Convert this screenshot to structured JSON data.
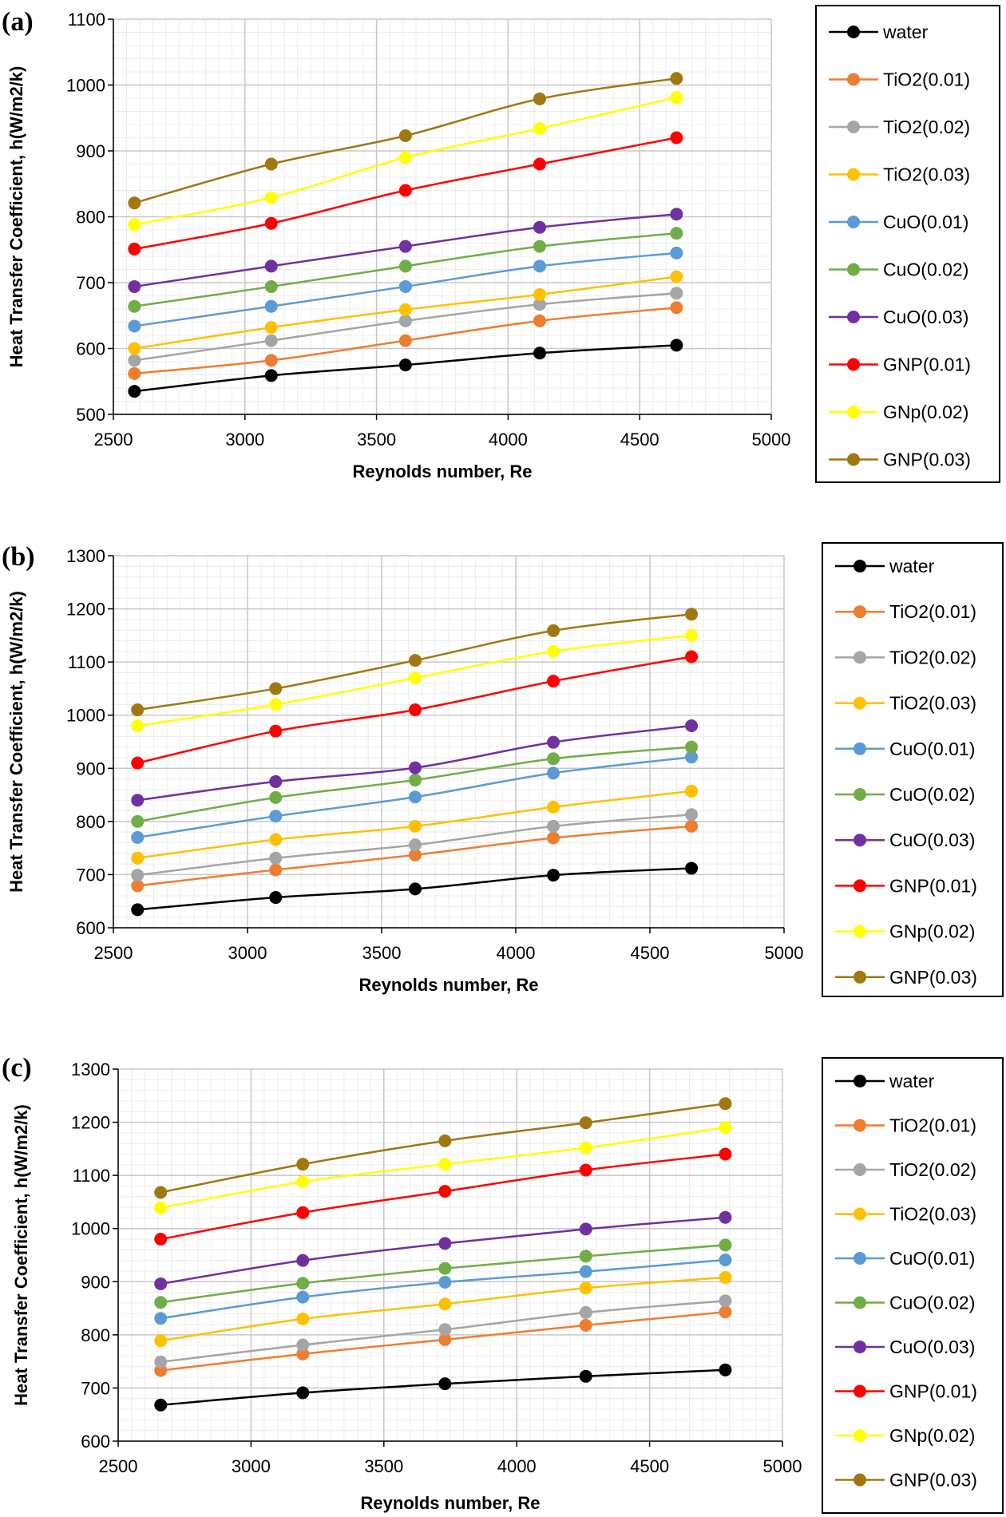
{
  "chart_data": [
    {
      "type": "line",
      "panel_label": "(a)",
      "xlabel": "Reynolds number, Re",
      "ylabel": "Heat Transfer Coefficient, h(W/m2/k)",
      "xlim": [
        2500,
        5000
      ],
      "ylim": [
        500,
        1100
      ],
      "xticks": [
        "2500",
        "3000",
        "3500",
        "4000",
        "4500",
        "5000"
      ],
      "yticks": [
        "500",
        "600",
        "700",
        "800",
        "900",
        "1000",
        "1100"
      ],
      "grid": true,
      "legend_position": "right",
      "x": [
        2580,
        3100,
        3610,
        4120,
        4640
      ],
      "series": [
        {
          "name": "water",
          "color": "#000000",
          "values": [
            535,
            559,
            575,
            593,
            605
          ]
        },
        {
          "name": "TiO2(0.01)",
          "color": "#ED7D31",
          "values": [
            562,
            582,
            612,
            642,
            662
          ]
        },
        {
          "name": "TiO2(0.02)",
          "color": "#A5A5A5",
          "values": [
            582,
            612,
            642,
            667,
            684
          ]
        },
        {
          "name": "TiO2(0.03)",
          "color": "#FFC000",
          "values": [
            600,
            632,
            659,
            682,
            709
          ]
        },
        {
          "name": "CuO(0.01)",
          "color": "#5B9BD5",
          "values": [
            634,
            664,
            694,
            725,
            745
          ]
        },
        {
          "name": "CuO(0.02)",
          "color": "#70AD47",
          "values": [
            664,
            694,
            725,
            755,
            775
          ]
        },
        {
          "name": "CuO(0.03)",
          "color": "#7030A0",
          "values": [
            694,
            725,
            755,
            784,
            804
          ]
        },
        {
          "name": "GNP(0.01)",
          "color": "#FF0000",
          "values": [
            751,
            790,
            840,
            880,
            920
          ]
        },
        {
          "name": "GNp(0.02)",
          "color": "#FFFF00",
          "values": [
            788,
            829,
            890,
            934,
            981
          ]
        },
        {
          "name": "GNP(0.03)",
          "color": "#A07810",
          "values": [
            821,
            880,
            923,
            979,
            1010
          ]
        }
      ]
    },
    {
      "type": "line",
      "panel_label": "(b)",
      "xlabel": "Reynolds number, Re",
      "ylabel": "Heat Transfer Coefficient, h(W/m2/k)",
      "xlim": [
        2500,
        5000
      ],
      "ylim": [
        600,
        1300
      ],
      "xticks": [
        "2500",
        "3000",
        "3500",
        "4000",
        "4500",
        "5000"
      ],
      "yticks": [
        "600",
        "700",
        "800",
        "900",
        "1000",
        "1100",
        "1200",
        "1300"
      ],
      "grid": true,
      "legend_position": "right",
      "x": [
        2590,
        3105,
        3625,
        4140,
        4655
      ],
      "series": [
        {
          "name": "water",
          "color": "#000000",
          "values": [
            634,
            657,
            673,
            699,
            712
          ]
        },
        {
          "name": "TiO2(0.01)",
          "color": "#ED7D31",
          "values": [
            679,
            709,
            737,
            769,
            791
          ]
        },
        {
          "name": "TiO2(0.02)",
          "color": "#A5A5A5",
          "values": [
            699,
            731,
            756,
            791,
            813
          ]
        },
        {
          "name": "TiO2(0.03)",
          "color": "#FFC000",
          "values": [
            731,
            766,
            791,
            827,
            857
          ]
        },
        {
          "name": "CuO(0.01)",
          "color": "#5B9BD5",
          "values": [
            770,
            810,
            846,
            891,
            921
          ]
        },
        {
          "name": "CuO(0.02)",
          "color": "#70AD47",
          "values": [
            800,
            845,
            878,
            918,
            940
          ]
        },
        {
          "name": "CuO(0.03)",
          "color": "#7030A0",
          "values": [
            840,
            875,
            901,
            949,
            980
          ]
        },
        {
          "name": "GNP(0.01)",
          "color": "#FF0000",
          "values": [
            910,
            970,
            1010,
            1064,
            1110
          ]
        },
        {
          "name": "GNp(0.02)",
          "color": "#FFFF00",
          "values": [
            980,
            1020,
            1070,
            1120,
            1150
          ]
        },
        {
          "name": "GNP(0.03)",
          "color": "#A07810",
          "values": [
            1010,
            1050,
            1103,
            1159,
            1190
          ]
        }
      ]
    },
    {
      "type": "line",
      "panel_label": "(c)",
      "xlabel": "Reynolds number, Re",
      "ylabel": "Heat Transfer Coefficient, h(W/m2/k)",
      "xlim": [
        2500,
        5000
      ],
      "ylim": [
        600,
        1300
      ],
      "xticks": [
        "2500",
        "3000",
        "3500",
        "4000",
        "4500",
        "5000"
      ],
      "yticks": [
        "600",
        "700",
        "800",
        "900",
        "1000",
        "1100",
        "1200",
        "1300"
      ],
      "grid": true,
      "legend_position": "right",
      "x": [
        2660,
        3195,
        3730,
        4260,
        4785
      ],
      "series": [
        {
          "name": "water",
          "color": "#000000",
          "values": [
            668,
            691,
            708,
            722,
            734
          ]
        },
        {
          "name": "TiO2(0.01)",
          "color": "#ED7D31",
          "values": [
            733,
            764,
            791,
            818,
            843
          ]
        },
        {
          "name": "TiO2(0.02)",
          "color": "#A5A5A5",
          "values": [
            749,
            781,
            810,
            842,
            864
          ]
        },
        {
          "name": "TiO2(0.03)",
          "color": "#FFC000",
          "values": [
            789,
            830,
            858,
            888,
            908
          ]
        },
        {
          "name": "CuO(0.01)",
          "color": "#5B9BD5",
          "values": [
            831,
            871,
            899,
            919,
            941
          ]
        },
        {
          "name": "CuO(0.02)",
          "color": "#70AD47",
          "values": [
            861,
            897,
            925,
            948,
            969
          ]
        },
        {
          "name": "CuO(0.03)",
          "color": "#7030A0",
          "values": [
            896,
            940,
            972,
            999,
            1021
          ]
        },
        {
          "name": "GNP(0.01)",
          "color": "#FF0000",
          "values": [
            980,
            1030,
            1070,
            1110,
            1140
          ]
        },
        {
          "name": "GNp(0.02)",
          "color": "#FFFF00",
          "values": [
            1039,
            1088,
            1121,
            1152,
            1190
          ]
        },
        {
          "name": "GNP(0.03)",
          "color": "#A07810",
          "values": [
            1068,
            1121,
            1165,
            1199,
            1235
          ]
        }
      ]
    }
  ]
}
